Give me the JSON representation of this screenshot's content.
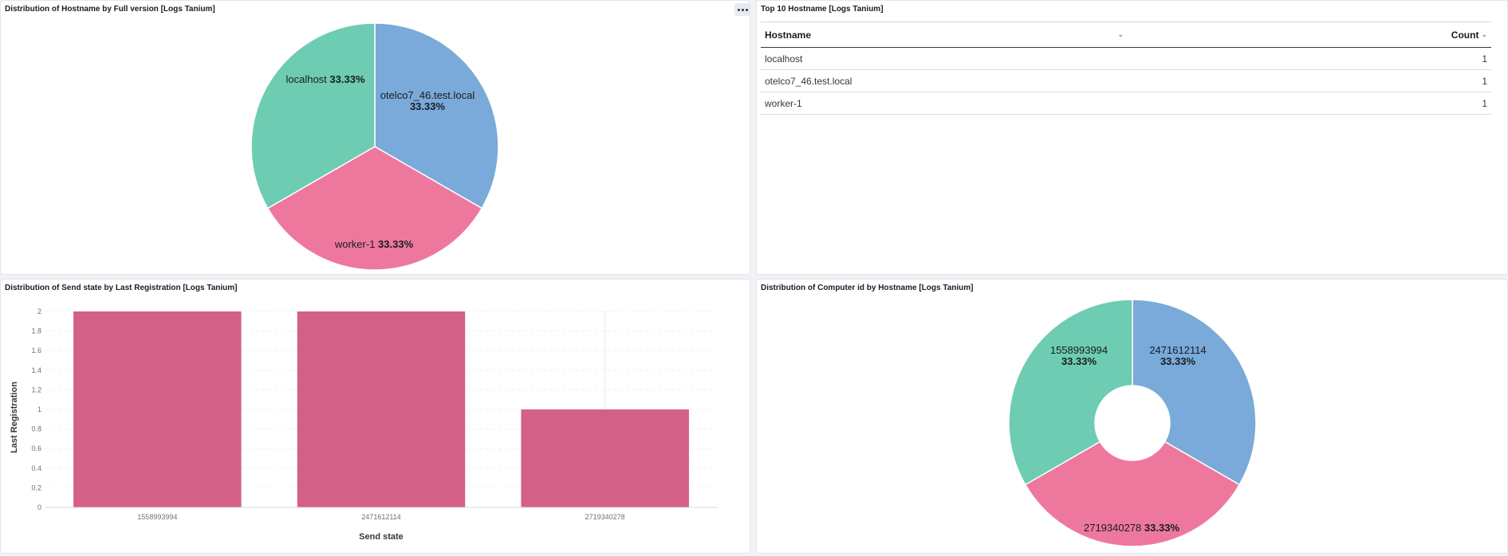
{
  "panels": {
    "hostname_pie": {
      "title": "Distribution of Hostname by Full version [Logs Tanium]"
    },
    "top10": {
      "title": "Top 10 Hostname [Logs Tanium]",
      "columns": [
        "Hostname",
        "Count"
      ],
      "rows": [
        {
          "hostname": "localhost",
          "count": "1"
        },
        {
          "hostname": "otelco7_46.test.local",
          "count": "1"
        },
        {
          "hostname": "worker-1",
          "count": "1"
        }
      ]
    },
    "send_state_bar": {
      "title": "Distribution of Send state by Last Registration [Logs Tanium]"
    },
    "computer_donut": {
      "title": "Distribution of Computer id by Hostname [Logs Tanium]"
    }
  },
  "colors": {
    "blue": "#79aad9",
    "pink": "#ee789d",
    "teal": "#6dccb1",
    "bar": "#d36086"
  },
  "chart_data": [
    {
      "type": "pie",
      "title": "Distribution of Hostname by Full version [Logs Tanium]",
      "slices": [
        {
          "label": "otelco7_46.test.local",
          "value": 33.33,
          "pct": "33.33%"
        },
        {
          "label": "worker-1",
          "value": 33.33,
          "pct": "33.33%"
        },
        {
          "label": "localhost",
          "value": 33.33,
          "pct": "33.33%"
        }
      ]
    },
    {
      "type": "bar",
      "title": "Distribution of Send state by Last Registration [Logs Tanium]",
      "categories": [
        "1558993994",
        "2471612114",
        "2719340278"
      ],
      "values": [
        2,
        2,
        1
      ],
      "xlabel": "Send state",
      "ylabel": "Last Registration",
      "ylim": [
        0,
        2
      ],
      "yticks": [
        "0",
        "0.2",
        "0.4",
        "0.6",
        "0.8",
        "1",
        "1.2",
        "1.4",
        "1.6",
        "1.8",
        "2"
      ]
    },
    {
      "type": "pie",
      "title": "Distribution of Computer id by Hostname [Logs Tanium]",
      "donut": true,
      "slices": [
        {
          "label": "2471612114",
          "value": 33.33,
          "pct": "33.33%"
        },
        {
          "label": "2719340278",
          "value": 33.33,
          "pct": "33.33%"
        },
        {
          "label": "1558993994",
          "value": 33.33,
          "pct": "33.33%"
        }
      ]
    }
  ]
}
